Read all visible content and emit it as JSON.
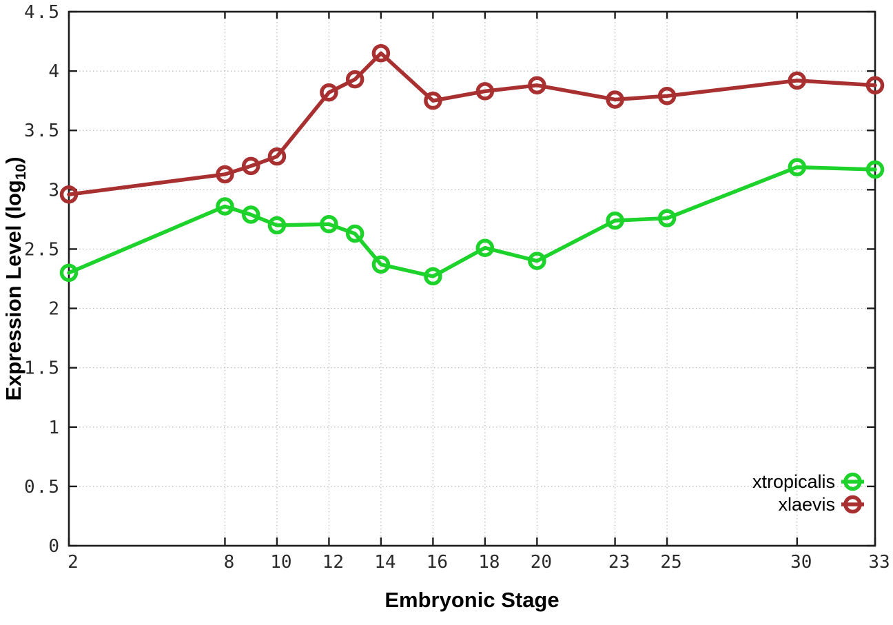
{
  "chart_data": {
    "type": "line",
    "title": "",
    "xlabel": "Embryonic Stage",
    "ylabel": "Expression Level (log10)",
    "ylabel_parts": {
      "prefix": "Expression Level (log",
      "sub": "10",
      "suffix": ")"
    },
    "x": [
      2,
      8,
      9,
      10,
      12,
      13,
      14,
      16,
      18,
      20,
      23,
      25,
      30,
      33
    ],
    "series": [
      {
        "name": "xtropicalis",
        "color": "#1dd32b",
        "values": [
          2.3,
          2.86,
          2.79,
          2.7,
          2.71,
          2.63,
          2.37,
          2.27,
          2.51,
          2.4,
          2.74,
          2.76,
          3.19,
          3.17
        ]
      },
      {
        "name": "xlaevis",
        "color": "#a93030",
        "values": [
          2.96,
          3.13,
          3.2,
          3.28,
          3.82,
          3.93,
          4.15,
          3.75,
          3.83,
          3.88,
          3.76,
          3.79,
          3.92,
          3.88
        ]
      }
    ],
    "xticks": [
      2,
      8,
      10,
      12,
      14,
      16,
      18,
      20,
      23,
      25,
      30,
      33
    ],
    "yticks": [
      0,
      0.5,
      1,
      1.5,
      2,
      2.5,
      3,
      3.5,
      4,
      4.5
    ],
    "xlim": [
      2,
      33
    ],
    "ylim": [
      0,
      4.5
    ],
    "grid": true,
    "grid_color": "#b8b8b8",
    "axis_color": "#1c1c1c",
    "legend_position": "bottom-right",
    "legend_entries": [
      "xtropicalis",
      "xlaevis"
    ]
  }
}
